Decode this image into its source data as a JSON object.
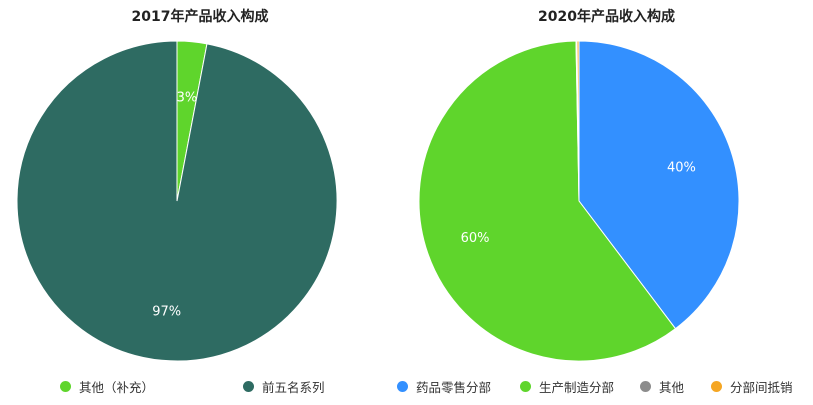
{
  "chart_data": [
    {
      "type": "pie",
      "title": "2017年产品收入构成",
      "slices": [
        {
          "label": "其他（补充）",
          "value": 3,
          "display": "3%",
          "color": "#5fd52c"
        },
        {
          "label": "前五名系列",
          "value": 97,
          "display": "97%",
          "color": "#2e6b62"
        }
      ],
      "legend_position": "bottom"
    },
    {
      "type": "pie",
      "title": "2020年产品收入构成",
      "slices": [
        {
          "label": "药品零售分部",
          "value": 39.7,
          "display": "40%",
          "color": "#3390ff"
        },
        {
          "label": "生产制造分部",
          "value": 60.0,
          "display": "60%",
          "color": "#5fd52c"
        },
        {
          "label": "其他",
          "value": 0.1,
          "display": "",
          "color": "#8c8c8c"
        },
        {
          "label": "分部间抵销",
          "value": 0.2,
          "display": "",
          "color": "#f5a623"
        }
      ],
      "legend_position": "bottom"
    }
  ]
}
